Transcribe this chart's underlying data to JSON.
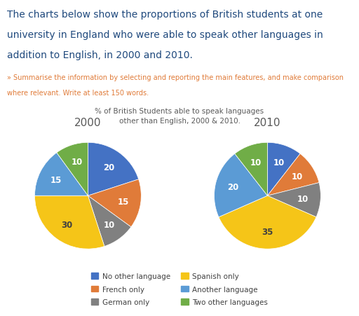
{
  "title_main_line1": "The charts below show the proportions of British students at one",
  "title_main_line2": "university in England who were able to speak other languages in",
  "title_main_line3": "addition to English, in 2000 and 2010.",
  "subtitle_line1": "» Summarise the information by selecting and reporting the main features, and make comparison",
  "subtitle_line2": "where relevant. Write at least 150 words.",
  "chart_title": "% of British Students able to speak languages\nother than English, 2000 & 2010.",
  "categories": [
    "No other language",
    "French only",
    "German only",
    "Spanish only",
    "Another language",
    "Two other languages"
  ],
  "colors": [
    "#4472C4",
    "#E07B39",
    "#808080",
    "#F5C518",
    "#5B9BD5",
    "#70AD47"
  ],
  "year_2000": {
    "label": "2000",
    "values": [
      20,
      15,
      10,
      30,
      15,
      10
    ],
    "startangle": 90
  },
  "year_2010": {
    "label": "2010",
    "values": [
      10,
      10,
      10,
      35,
      20,
      10
    ],
    "startangle": 90
  },
  "background_color": "#FFFFFF",
  "main_title_color": "#1F497D",
  "subtitle_color": "#E07B39",
  "chart_title_color": "#595959",
  "legend_color": "#404040",
  "year_label_color": "#595959"
}
